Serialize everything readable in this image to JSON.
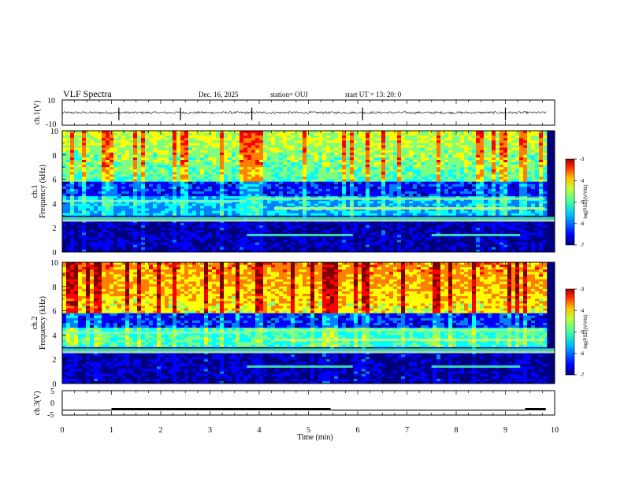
{
  "header": {
    "title": "VLF Spectra",
    "date": "Dec. 16, 2025",
    "station": "station= OUJ",
    "start": "start  UT  =   13: 20: 0"
  },
  "colors": {
    "cmap": [
      "#00007f",
      "#0000ff",
      "#007fff",
      "#00ffff",
      "#7fff7f",
      "#ffff00",
      "#ff7f00",
      "#ff0000",
      "#7f0000"
    ]
  },
  "chart_data": [
    {
      "type": "line",
      "name": "ch1-waveform",
      "ylabel": "ch.1(V)",
      "ylim": [
        -10,
        10
      ],
      "yticks": [
        "10",
        "-10"
      ],
      "xlim": [
        0,
        10
      ],
      "baseline": 0
    },
    {
      "type": "heatmap",
      "name": "ch1-spectrogram",
      "ylabel_line1": "ch.1",
      "ylabel_line2": "Frequency  (kHz)",
      "ylim": [
        0,
        10
      ],
      "yticks": [
        "0",
        "2",
        "4",
        "6",
        "8",
        "10"
      ],
      "xlim": [
        0,
        10
      ],
      "colorbar": {
        "label": "log(PSD)(V²/Hz)",
        "ticks": [
          "-3",
          "-4",
          "-5",
          "-6",
          "-7"
        ],
        "range": [
          -7,
          -3
        ]
      }
    },
    {
      "type": "heatmap",
      "name": "ch2-spectrogram",
      "ylabel_line1": "ch.2",
      "ylabel_line2": "Frequency  (kHz)",
      "ylim": [
        0,
        10
      ],
      "yticks": [
        "0",
        "2",
        "4",
        "6",
        "8",
        "10"
      ],
      "xlim": [
        0,
        10
      ],
      "colorbar": {
        "label": "log(PSD)(V²/Hz)",
        "ticks": [
          "-3",
          "-4",
          "-5",
          "-6",
          "-7"
        ],
        "range": [
          -7,
          -3
        ]
      }
    },
    {
      "type": "line",
      "name": "ch3-trace",
      "ylabel": "ch.3(V)",
      "ylim": [
        -5,
        5
      ],
      "yticks": [
        "5",
        "0",
        "-5"
      ],
      "xlim": [
        0,
        10
      ],
      "xlabel": "Time  (min)",
      "xticks": [
        "0",
        "1",
        "2",
        "3",
        "4",
        "5",
        "6",
        "7",
        "8",
        "9",
        "10"
      ],
      "segments": [
        {
          "x0": 0.0,
          "x1": 1.0,
          "y": -3.0
        },
        {
          "x0": 1.0,
          "x1": 5.45,
          "y": -2.6
        },
        {
          "x0": 5.45,
          "x1": 9.4,
          "y": -3.0
        },
        {
          "x0": 9.4,
          "x1": 9.82,
          "y": -2.6
        }
      ]
    }
  ]
}
